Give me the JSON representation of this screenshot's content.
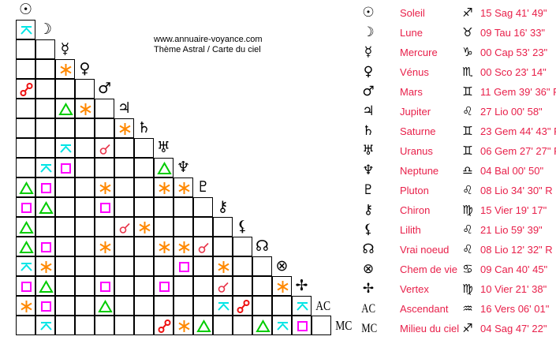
{
  "header": {
    "site": "www.annuaire-voyance.com",
    "subtitle": "Thème Astral / Carte du ciel"
  },
  "aspect_colors": {
    "conjunction": "#e8344a",
    "opposition": "#ee1111",
    "sextile": "#ff8800",
    "square": "#ff00ff",
    "trine": "#00cc00",
    "quincunx": "#00e5e5"
  },
  "bodies": [
    {
      "glyph": "☉",
      "name": "Soleil",
      "sign": "♐",
      "position": "15 Sag 41' 49\""
    },
    {
      "glyph": "☽",
      "name": "Lune",
      "sign": "♉",
      "position": "09 Tau 16' 33\""
    },
    {
      "glyph": "☿",
      "name": "Mercure",
      "sign": "♑",
      "position": "00 Cap 53' 23\""
    },
    {
      "glyph": "♀",
      "name": "Vénus",
      "sign": "♏",
      "position": "00 Sco 23' 14\""
    },
    {
      "glyph": "♂",
      "name": "Mars",
      "sign": "♊",
      "position": "11 Gem 39' 36\" R"
    },
    {
      "glyph": "♃",
      "name": "Jupiter",
      "sign": "♌",
      "position": "27 Lio 00' 58\""
    },
    {
      "glyph": "♄",
      "name": "Saturne",
      "sign": "♊",
      "position": "23 Gem 44' 43\" R"
    },
    {
      "glyph": "♅",
      "name": "Uranus",
      "sign": "♊",
      "position": "06 Gem 27' 27\" R"
    },
    {
      "glyph": "♆",
      "name": "Neptune",
      "sign": "♎",
      "position": "04 Bal 00' 50\""
    },
    {
      "glyph": "♇",
      "name": "Pluton",
      "sign": "♌",
      "position": "08 Lio 34' 30\" R"
    },
    {
      "glyph": "⚷",
      "name": "Chiron",
      "sign": "♍",
      "position": "15 Vier 19' 17\""
    },
    {
      "glyph": "⚸",
      "name": "Lilith",
      "sign": "♌",
      "position": "21 Lio 59' 39\""
    },
    {
      "glyph": "☊",
      "name": "Vrai noeud",
      "sign": "♌",
      "position": "08 Lio 12' 32\" R"
    },
    {
      "glyph": "⊗",
      "name": "Chem de vie",
      "sign": "♋",
      "position": "09 Can 40' 45\""
    },
    {
      "glyph": "✢",
      "name": "Vertex",
      "sign": "♍",
      "position": "10 Vier 21' 38\""
    },
    {
      "glyph": "AC",
      "name": "Ascendant",
      "sign": "♒",
      "position": "16 Vers 06' 01\""
    },
    {
      "glyph": "MC",
      "name": "Milieu du ciel",
      "sign": "♐",
      "position": "04 Sag 47' 22\""
    }
  ],
  "aspect_grid": [
    [
      "quincunx"
    ],
    [
      "",
      ""
    ],
    [
      "",
      "",
      "sextile"
    ],
    [
      "opposition",
      "",
      "",
      ""
    ],
    [
      "",
      "",
      "trine",
      "sextile",
      ""
    ],
    [
      "",
      "",
      "",
      "",
      "",
      "sextile"
    ],
    [
      "",
      "",
      "quincunx",
      "",
      "conjunction",
      "",
      ""
    ],
    [
      "",
      "quincunx",
      "square",
      "",
      "",
      "",
      "",
      "trine"
    ],
    [
      "trine",
      "square",
      "",
      "",
      "sextile",
      "",
      "",
      "sextile",
      "sextile"
    ],
    [
      "square",
      "trine",
      "",
      "",
      "square",
      "",
      "",
      "",
      "",
      ""
    ],
    [
      "trine",
      "",
      "",
      "",
      "",
      "conjunction",
      "sextile",
      "",
      "",
      "",
      ""
    ],
    [
      "trine",
      "square",
      "",
      "",
      "sextile",
      "",
      "",
      "sextile",
      "sextile",
      "conjunction",
      "",
      ""
    ],
    [
      "quincunx",
      "sextile",
      "",
      "",
      "",
      "",
      "",
      "",
      "square",
      "",
      "sextile",
      "",
      ""
    ],
    [
      "square",
      "trine",
      "",
      "",
      "square",
      "",
      "",
      "square",
      "",
      "",
      "conjunction",
      "",
      "",
      "sextile"
    ],
    [
      "sextile",
      "square",
      "",
      "",
      "trine",
      "",
      "",
      "",
      "",
      "",
      "quincunx",
      "opposition",
      "",
      "",
      "quincunx"
    ],
    [
      "",
      "quincunx",
      "",
      "",
      "",
      "",
      "",
      "opposition",
      "sextile",
      "trine",
      "",
      "",
      "trine",
      "quincunx",
      "square",
      ""
    ]
  ]
}
